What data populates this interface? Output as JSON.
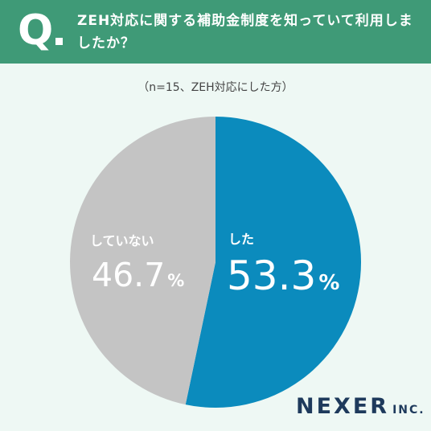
{
  "header": {
    "q_label": "Q",
    "question": "ZEH対応に関する補助金制度を知っていて利用しましたか？"
  },
  "note": "（n=15、ZEH対応にした方）",
  "colors": {
    "header_bg": "#3f9a77",
    "background": "#eef8f4",
    "did": "#0b8bbd",
    "did_not": "#c4c4c4",
    "logo": "#1e3a5c"
  },
  "chart_data": {
    "type": "pie",
    "title": "ZEH対応に関する補助金制度を知っていて利用しましたか？",
    "subtitle": "（n=15、ZEH対応にした方）",
    "unit": "%",
    "slices": [
      {
        "label": "した",
        "value": 53.3,
        "display": "53.3",
        "color": "#0b8bbd"
      },
      {
        "label": "していない",
        "value": 46.7,
        "display": "46.7",
        "color": "#c4c4c4"
      }
    ]
  },
  "logo": {
    "main": "NEXER",
    "suffix": "INC."
  }
}
